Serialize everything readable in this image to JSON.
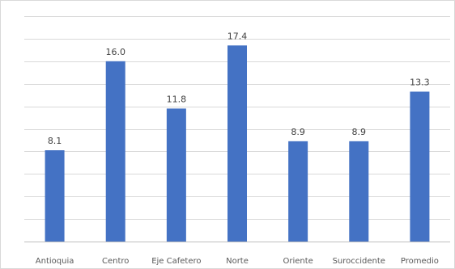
{
  "chart_data": {
    "type": "bar",
    "title": "",
    "xlabel": "",
    "ylabel": "",
    "categories": [
      "Antioquia",
      "Centro",
      "Eje Cafetero",
      "Norte",
      "Oriente",
      "Suroccidente",
      "Promedio"
    ],
    "values": [
      8.1,
      16.0,
      11.8,
      17.4,
      8.9,
      8.9,
      13.3
    ],
    "value_labels": [
      "8.1",
      "16.0",
      "11.8",
      "17.4",
      "8.9",
      "8.9",
      "13.3"
    ],
    "ylim": [
      0,
      20
    ],
    "grid": true,
    "legend": "none",
    "bar_color": "#4472c4"
  }
}
